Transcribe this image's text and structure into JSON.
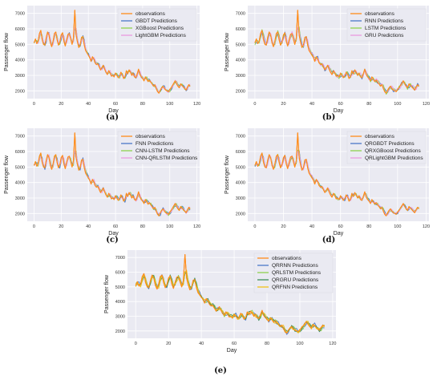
{
  "chart_data": [
    {
      "id": "a",
      "type": "line",
      "panel_label": "(a)",
      "xlabel": "Day",
      "ylabel": "Passenger flow",
      "xticks": [
        0,
        20,
        40,
        60,
        80,
        100,
        120
      ],
      "yticks": [
        2000,
        3000,
        4000,
        5000,
        6000,
        7000
      ],
      "xlim": [
        -5,
        122
      ],
      "ylim": [
        1500,
        7500
      ],
      "grid": true,
      "legend": "top-right",
      "series": [
        {
          "name": "observations",
          "color": "#ff8c1a",
          "role": "obs"
        },
        {
          "name": "GBDT Predictions",
          "color": "#4c78c8",
          "role": "pred",
          "noise": 0.35,
          "phase": 1
        },
        {
          "name": "XGBoost Predictions",
          "color": "#8fd14f",
          "role": "pred",
          "noise": 0.3,
          "phase": 2
        },
        {
          "name": "LightGBM Predictions",
          "color": "#e99be0",
          "role": "pred",
          "noise": 0.3,
          "phase": 3
        }
      ]
    },
    {
      "id": "b",
      "type": "line",
      "panel_label": "(b)",
      "xlabel": "Day",
      "ylabel": "Passenger flow",
      "xticks": [
        0,
        20,
        40,
        60,
        80,
        100,
        120
      ],
      "yticks": [
        2000,
        3000,
        4000,
        5000,
        6000,
        7000
      ],
      "xlim": [
        -5,
        122
      ],
      "ylim": [
        1500,
        7500
      ],
      "grid": true,
      "legend": "top-right",
      "series": [
        {
          "name": "observations",
          "color": "#ff8c1a",
          "role": "obs"
        },
        {
          "name": "RNN Predictions",
          "color": "#4c78c8",
          "role": "pred",
          "noise": 0.45,
          "phase": 4
        },
        {
          "name": "LSTM Predictions",
          "color": "#8fd14f",
          "role": "pred",
          "noise": 0.45,
          "phase": 5
        },
        {
          "name": "GRU Predictions",
          "color": "#e99be0",
          "role": "pred",
          "noise": 0.45,
          "phase": 6
        }
      ]
    },
    {
      "id": "c",
      "type": "line",
      "panel_label": "(c)",
      "xlabel": "Day",
      "ylabel": "Passenger flow",
      "xticks": [
        0,
        20,
        40,
        60,
        80,
        100,
        120
      ],
      "yticks": [
        2000,
        3000,
        4000,
        5000,
        6000,
        7000
      ],
      "xlim": [
        -5,
        122
      ],
      "ylim": [
        1500,
        7500
      ],
      "grid": true,
      "legend": "top-right",
      "series": [
        {
          "name": "observations",
          "color": "#ff8c1a",
          "role": "obs"
        },
        {
          "name": "FNN Predictions",
          "color": "#4c78c8",
          "role": "pred",
          "noise": 0.4,
          "phase": 7
        },
        {
          "name": "CNN-LSTM Predictions",
          "color": "#8fd14f",
          "role": "pred",
          "noise": 0.35,
          "phase": 8
        },
        {
          "name": "CNN-QRLSTM Predictions",
          "color": "#e99be0",
          "role": "pred",
          "noise": 0.35,
          "phase": 9
        }
      ]
    },
    {
      "id": "d",
      "type": "line",
      "panel_label": "(d)",
      "xlabel": "Day",
      "ylabel": "Passenger flow",
      "xticks": [
        0,
        20,
        40,
        60,
        80,
        100,
        120
      ],
      "yticks": [
        2000,
        3000,
        4000,
        5000,
        6000,
        7000
      ],
      "xlim": [
        -5,
        122
      ],
      "ylim": [
        1500,
        7500
      ],
      "grid": true,
      "legend": "top-right",
      "series": [
        {
          "name": "observations",
          "color": "#ff8c1a",
          "role": "obs"
        },
        {
          "name": "QRGBDT Predictions",
          "color": "#4c78c8",
          "role": "pred",
          "noise": 0.3,
          "phase": 10
        },
        {
          "name": "QRXGBoost Predictions",
          "color": "#8fd14f",
          "role": "pred",
          "noise": 0.3,
          "phase": 11
        },
        {
          "name": "QRLightGBM Predictions",
          "color": "#e99be0",
          "role": "pred",
          "noise": 0.3,
          "phase": 12
        }
      ]
    },
    {
      "id": "e",
      "type": "line",
      "panel_label": "(e)",
      "xlabel": "Day",
      "ylabel": "Passenger flow",
      "xticks": [
        0,
        20,
        40,
        60,
        80,
        100,
        120
      ],
      "yticks": [
        2000,
        3000,
        4000,
        5000,
        6000,
        7000
      ],
      "xlim": [
        -5,
        122
      ],
      "ylim": [
        1500,
        7500
      ],
      "grid": true,
      "legend": "top-right",
      "series": [
        {
          "name": "observations",
          "color": "#ff8c1a",
          "role": "obs"
        },
        {
          "name": "QRRNN Predictions",
          "color": "#4c78c8",
          "role": "pred",
          "noise": 0.45,
          "phase": 13
        },
        {
          "name": "QRLSTM Predictions",
          "color": "#8fd14f",
          "role": "pred",
          "noise": 0.45,
          "phase": 14
        },
        {
          "name": "QRGRU Predictions",
          "color": "#3f8f5a",
          "role": "pred",
          "noise": 0.45,
          "phase": 15
        },
        {
          "name": "QRFNN Predictions",
          "color": "#f2c21a",
          "role": "pred",
          "noise": 0.45,
          "phase": 16
        }
      ]
    }
  ],
  "observations": [
    5100,
    5350,
    5050,
    5200,
    5700,
    5900,
    5300,
    5000,
    4950,
    5450,
    5800,
    5600,
    5100,
    4850,
    5200,
    5700,
    5800,
    5300,
    4950,
    5150,
    5600,
    5750,
    5200,
    4900,
    5300,
    5650,
    5700,
    5350,
    5000,
    5400,
    7200,
    5600,
    5150,
    4800,
    4950,
    5450,
    5500,
    4950,
    4600,
    4450,
    4300,
    4150,
    3900,
    4200,
    4050,
    3800,
    3700,
    3750,
    3550,
    3350,
    3500,
    3650,
    3400,
    3200,
    3050,
    3300,
    3150,
    2950,
    3000,
    2900,
    3150,
    3000,
    2850,
    2950,
    3200,
    3050,
    2800,
    2900,
    3300,
    3100,
    3350,
    3200,
    3000,
    3150,
    2900,
    2850,
    3100,
    3400,
    3050,
    2900,
    2800,
    2650,
    2900,
    2750,
    2600,
    2700,
    2550,
    2450,
    2300,
    2400,
    2150,
    1950,
    1850,
    2050,
    2200,
    2300,
    2150,
    2050,
    2000,
    1950,
    2100,
    2200,
    2350,
    2500,
    2650,
    2450,
    2300,
    2200,
    2450,
    2350,
    2250,
    2150,
    2050,
    2250,
    2400,
    2300
  ]
}
